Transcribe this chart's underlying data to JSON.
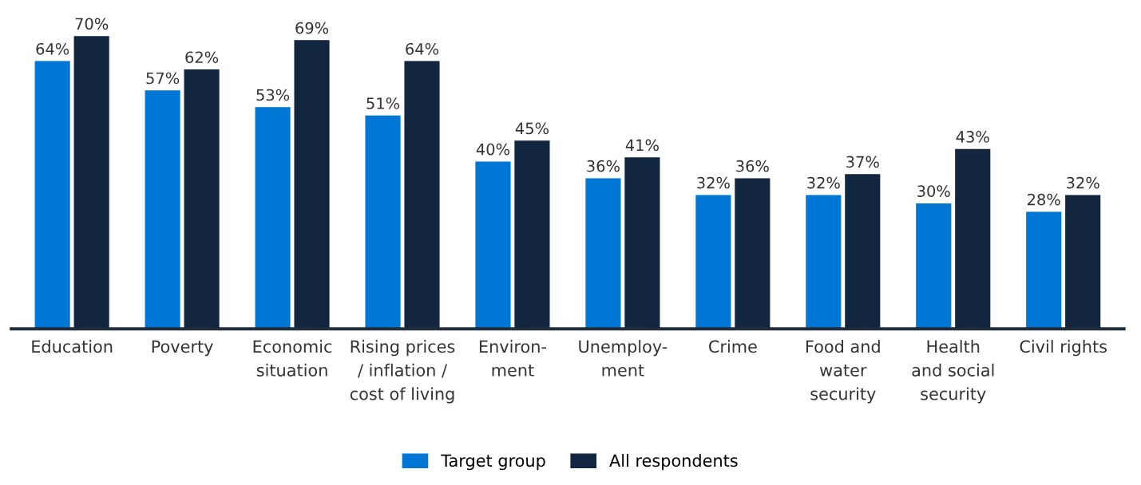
{
  "chart_data": {
    "type": "bar",
    "categories": [
      "Education",
      "Poverty",
      "Economic\nsituation",
      "Rising prices\n/ inflation /\ncost of living",
      "Environ-\nment",
      "Unemploy-\nment",
      "Crime",
      "Food and\nwater\nsecurity",
      "Health\nand social\nsecurity",
      "Civil rights"
    ],
    "series": [
      {
        "name": "Target group",
        "color": "#0077d4",
        "values": [
          64,
          57,
          53,
          51,
          40,
          36,
          32,
          32,
          30,
          28
        ],
        "value_labels": [
          "64%",
          "57%",
          "53%",
          "51%",
          "40%",
          "36%",
          "32%",
          "32%",
          "30%",
          "28%"
        ]
      },
      {
        "name": "All respondents",
        "color": "#12263f",
        "values": [
          70,
          62,
          69,
          64,
          45,
          41,
          36,
          37,
          43,
          32
        ],
        "value_labels": [
          "70%",
          "62%",
          "69%",
          "64%",
          "45%",
          "41%",
          "36%",
          "37%",
          "43%",
          "32%"
        ]
      }
    ],
    "legend": "bottom",
    "grid": false
  }
}
